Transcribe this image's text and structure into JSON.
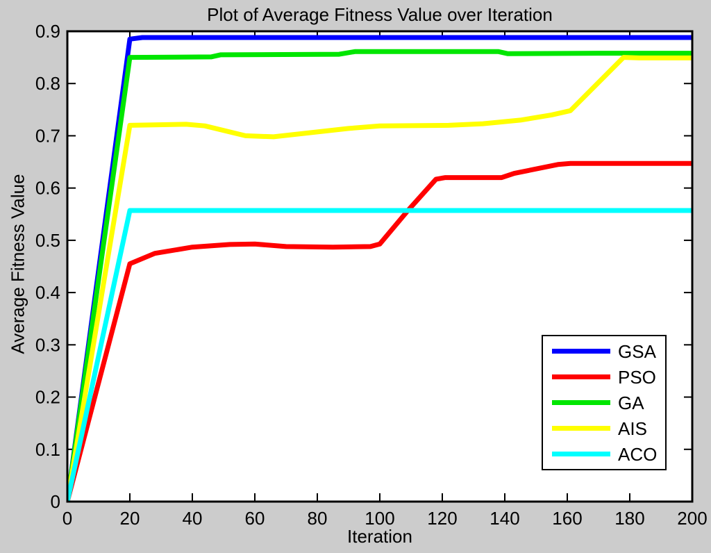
{
  "palette": {
    "figure_background": "#cccccc",
    "plot_background": "#ffffff",
    "axis_color": "#000000",
    "text_color": "#000000"
  },
  "chart_data": {
    "type": "line",
    "title": "Plot of Average Fitness Value over Iteration",
    "xlabel": "Iteration",
    "ylabel": "Average Fitness Value",
    "xlim": [
      0,
      200
    ],
    "ylim": [
      0,
      0.9
    ],
    "x_ticks": [
      0,
      20,
      40,
      60,
      80,
      100,
      120,
      140,
      160,
      180,
      200
    ],
    "y_ticks": [
      0,
      0.1,
      0.2,
      0.3,
      0.4,
      0.5,
      0.6,
      0.7,
      0.8,
      0.9
    ],
    "grid": false,
    "legend_position": "bottom-right",
    "line_width": 7,
    "series": [
      {
        "name": "GSA",
        "color": "#0000ff",
        "points": [
          [
            0,
            0
          ],
          [
            20,
            0.885
          ],
          [
            24,
            0.888
          ],
          [
            200,
            0.888
          ]
        ]
      },
      {
        "name": "PSO",
        "color": "#ff0000",
        "points": [
          [
            0,
            0
          ],
          [
            20,
            0.455
          ],
          [
            28,
            0.475
          ],
          [
            40,
            0.487
          ],
          [
            52,
            0.492
          ],
          [
            60,
            0.493
          ],
          [
            70,
            0.488
          ],
          [
            85,
            0.487
          ],
          [
            97,
            0.488
          ],
          [
            100,
            0.493
          ],
          [
            109,
            0.557
          ],
          [
            118,
            0.617
          ],
          [
            121,
            0.62
          ],
          [
            139,
            0.62
          ],
          [
            143,
            0.628
          ],
          [
            157,
            0.645
          ],
          [
            161,
            0.647
          ],
          [
            200,
            0.647
          ]
        ]
      },
      {
        "name": "GA",
        "color": "#00e600",
        "points": [
          [
            0,
            0
          ],
          [
            20,
            0.85
          ],
          [
            46,
            0.851
          ],
          [
            49,
            0.855
          ],
          [
            87,
            0.856
          ],
          [
            92,
            0.861
          ],
          [
            138,
            0.861
          ],
          [
            141,
            0.857
          ],
          [
            170,
            0.858
          ],
          [
            200,
            0.858
          ]
        ]
      },
      {
        "name": "AIS",
        "color": "#ffff00",
        "points": [
          [
            0,
            0
          ],
          [
            20,
            0.72
          ],
          [
            38,
            0.722
          ],
          [
            44,
            0.719
          ],
          [
            57,
            0.7
          ],
          [
            66,
            0.698
          ],
          [
            78,
            0.706
          ],
          [
            90,
            0.714
          ],
          [
            100,
            0.719
          ],
          [
            122,
            0.72
          ],
          [
            133,
            0.723
          ],
          [
            145,
            0.73
          ],
          [
            155,
            0.74
          ],
          [
            161,
            0.748
          ],
          [
            178,
            0.85
          ],
          [
            183,
            0.849
          ],
          [
            200,
            0.849
          ]
        ]
      },
      {
        "name": "ACO",
        "color": "#00ffff",
        "points": [
          [
            0,
            0
          ],
          [
            20,
            0.557
          ],
          [
            200,
            0.557
          ]
        ]
      }
    ]
  }
}
